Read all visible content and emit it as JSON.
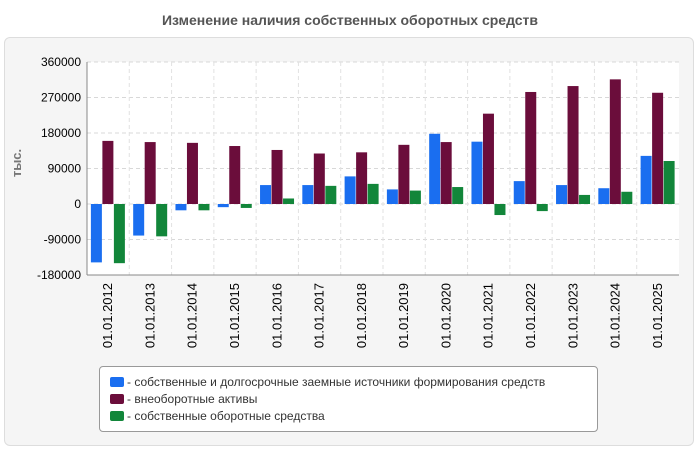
{
  "title": "Изменение наличия собственных оборотных средств",
  "chart_data": {
    "type": "bar",
    "title": "Изменение наличия собственных оборотных средств",
    "ylabel": "тыс.",
    "xlabel": "",
    "ylim": [
      -180000,
      360000
    ],
    "yticks": [
      360000,
      270000,
      180000,
      90000,
      0,
      -90000,
      -180000
    ],
    "grid": true,
    "legend_position": "bottom",
    "categories": [
      "01.01.2012",
      "01.01.2013",
      "01.01.2014",
      "01.01.2015",
      "01.01.2016",
      "01.01.2017",
      "01.01.2018",
      "01.01.2019",
      "01.01.2020",
      "01.01.2021",
      "01.01.2022",
      "01.01.2023",
      "01.01.2024",
      "01.01.2025"
    ],
    "series": [
      {
        "name": "- собственные и долгосрочные заемные источники формирования средств",
        "color": "#1a6ef0",
        "values": [
          -148000,
          -80000,
          -16000,
          -8000,
          48000,
          48000,
          70000,
          37000,
          178000,
          158000,
          58000,
          48000,
          40000,
          122000
        ]
      },
      {
        "name": "- внеоборотные активы",
        "color": "#6b0d3b",
        "values": [
          160000,
          157000,
          155000,
          147000,
          137000,
          128000,
          131000,
          150000,
          157000,
          229000,
          284000,
          299000,
          316000,
          282000
        ]
      },
      {
        "name": "- собственные оборотные средства",
        "color": "#12863a",
        "values": [
          -150000,
          -82000,
          -16000,
          -10000,
          14000,
          46000,
          51000,
          34000,
          43000,
          -28000,
          -18000,
          23000,
          31000,
          109000
        ]
      }
    ]
  }
}
